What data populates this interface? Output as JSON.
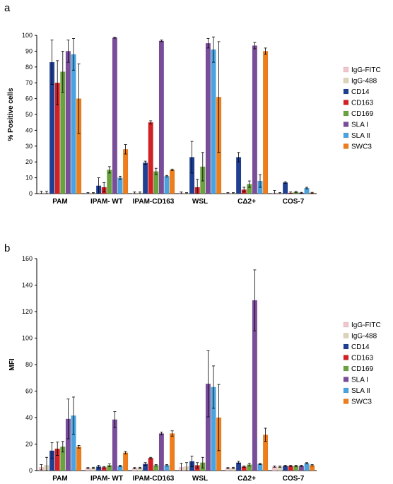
{
  "chart_data": [
    {
      "panel": "a",
      "type": "bar",
      "ylabel": "% Positive cells",
      "ylim": [
        0,
        100
      ],
      "ytick_step": 10,
      "categories": [
        "PAM",
        "IPAM- WT",
        "IPAM-CD163",
        "WSL",
        "CΔ2+",
        "COS-7"
      ],
      "legend_position": "right",
      "series": [
        {
          "name": "IgG-FITC",
          "color": "#f2c6cc",
          "values": [
            0.5,
            0.3,
            0.5,
            0.5,
            0.3,
            0.5
          ],
          "errors": [
            1,
            0.3,
            0.5,
            0.5,
            0.3,
            1.5
          ]
        },
        {
          "name": "IgG-488",
          "color": "#ddd3b8",
          "values": [
            0.5,
            0.3,
            0.5,
            0.3,
            0.3,
            0.3
          ],
          "errors": [
            1,
            0.3,
            0.5,
            0.3,
            0.3,
            0.3
          ]
        },
        {
          "name": "CD14",
          "color": "#1f3f93",
          "values": [
            83,
            5,
            19.5,
            23,
            23,
            7
          ],
          "errors": [
            14,
            5,
            1,
            10,
            3,
            0.5
          ]
        },
        {
          "name": "CD163",
          "color": "#d42024",
          "values": [
            70,
            4,
            45,
            4,
            2.5,
            0.5
          ],
          "errors": [
            14,
            3,
            1,
            5,
            1.5,
            0.5
          ]
        },
        {
          "name": "CD169",
          "color": "#6aa33e",
          "values": [
            77,
            15,
            14,
            17,
            6,
            1
          ],
          "errors": [
            13,
            2,
            2,
            9,
            2,
            0.5
          ]
        },
        {
          "name": "SLA I",
          "color": "#7a4d9a",
          "values": [
            90,
            98.5,
            96.5,
            95,
            93.5,
            0.5
          ],
          "errors": [
            7,
            0.3,
            0.5,
            3,
            2,
            0.3
          ]
        },
        {
          "name": "SLA II",
          "color": "#4aa3df",
          "values": [
            88,
            10,
            11,
            91,
            8,
            3.5
          ],
          "errors": [
            10,
            1,
            0.5,
            8,
            4,
            0.5
          ]
        },
        {
          "name": "SWC3",
          "color": "#ef7d1a",
          "values": [
            60,
            28,
            15,
            61,
            90,
            0.5
          ],
          "errors": [
            22,
            3,
            0.5,
            35,
            2,
            0.3
          ]
        }
      ]
    },
    {
      "panel": "b",
      "type": "bar",
      "ylabel": "MFI",
      "ylim": [
        0,
        160
      ],
      "ytick_step": 20,
      "categories": [
        "PAM",
        "IPAM- WT",
        "IPAM-CD163",
        "WSL",
        "CΔ2+",
        "COS-7"
      ],
      "legend_position": "right",
      "series": [
        {
          "name": "IgG-FITC",
          "color": "#f2c6cc",
          "values": [
            2.5,
            1.8,
            1.8,
            2.5,
            1.8,
            3
          ],
          "errors": [
            2,
            0.5,
            0.5,
            3,
            0.5,
            0.5
          ]
        },
        {
          "name": "IgG-488",
          "color": "#ddd3b8",
          "values": [
            4,
            2,
            2,
            3,
            2,
            3
          ],
          "errors": [
            6,
            0.5,
            0.5,
            3,
            0.5,
            0.5
          ]
        },
        {
          "name": "CD14",
          "color": "#1f3f93",
          "values": [
            15,
            3,
            5,
            7,
            6,
            3.5
          ],
          "errors": [
            6,
            1,
            1,
            4,
            1,
            0.5
          ]
        },
        {
          "name": "CD163",
          "color": "#d42024",
          "values": [
            16.5,
            2.5,
            9.5,
            4,
            3,
            3.5
          ],
          "errors": [
            5,
            0.5,
            0.5,
            2,
            0.5,
            0.5
          ]
        },
        {
          "name": "CD169",
          "color": "#6aa33e",
          "values": [
            18,
            4,
            4,
            6,
            4.5,
            3.5
          ],
          "errors": [
            4,
            1,
            0.5,
            4,
            1,
            0.5
          ]
        },
        {
          "name": "SLA I",
          "color": "#7a4d9a",
          "values": [
            39,
            38.5,
            28,
            65.5,
            128.5,
            3.5
          ],
          "errors": [
            15,
            6,
            1,
            25,
            23,
            0.5
          ]
        },
        {
          "name": "SLA II",
          "color": "#4aa3df",
          "values": [
            41.5,
            3.5,
            4,
            63,
            5,
            5.5
          ],
          "errors": [
            14,
            0.5,
            0.5,
            16,
            0.5,
            0.5
          ]
        },
        {
          "name": "SWC3",
          "color": "#ef7d1a",
          "values": [
            18,
            13.5,
            28,
            40,
            27,
            4
          ],
          "errors": [
            1,
            1,
            2,
            25,
            5,
            0.5
          ]
        }
      ]
    }
  ]
}
